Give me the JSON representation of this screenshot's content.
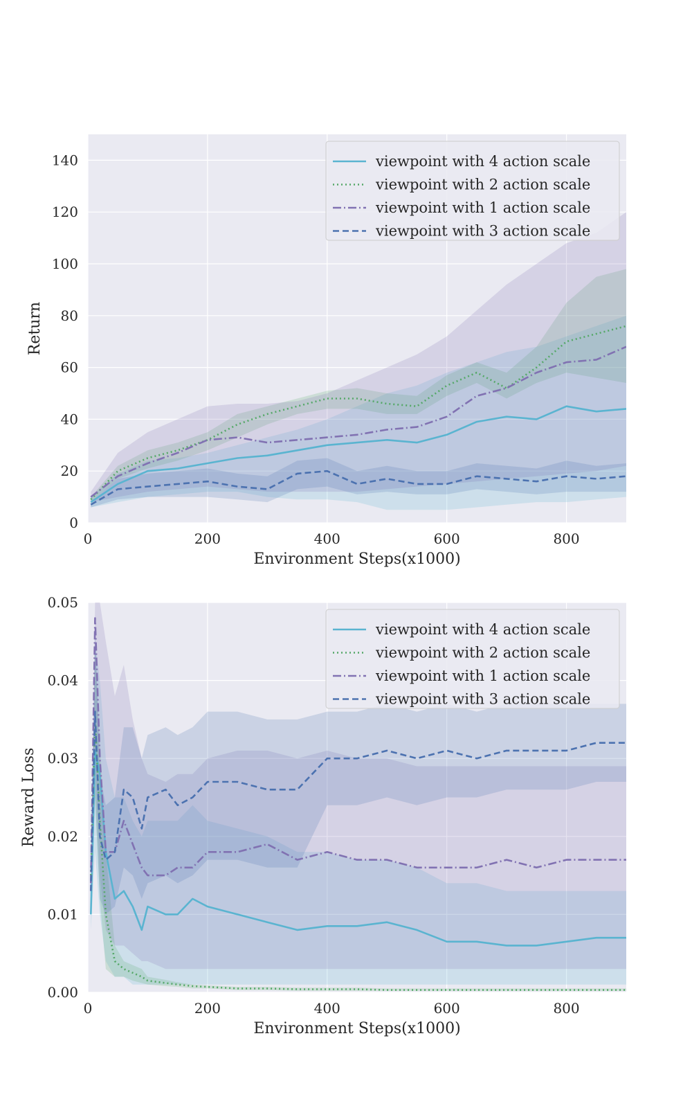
{
  "chart_data": [
    {
      "type": "line",
      "xlabel": "Environment Steps(x1000)",
      "ylabel": "Return",
      "xlim": [
        0,
        900
      ],
      "ylim": [
        0,
        150
      ],
      "xticks": [
        0,
        200,
        400,
        600,
        800
      ],
      "yticks": [
        0,
        20,
        40,
        60,
        80,
        100,
        120,
        140
      ],
      "grid": true,
      "legend_position": "upper-right",
      "series": [
        {
          "name": "viewpoint with 4 action scale",
          "color": "#5ab4d0",
          "style": "solid",
          "x": [
            5,
            50,
            100,
            150,
            200,
            250,
            300,
            350,
            400,
            450,
            500,
            550,
            600,
            650,
            700,
            750,
            800,
            850,
            900
          ],
          "y": [
            8,
            15,
            20,
            21,
            23,
            25,
            26,
            28,
            30,
            31,
            32,
            31,
            34,
            39,
            41,
            40,
            45,
            43,
            44
          ],
          "band_low": [
            6,
            8,
            10,
            11,
            12,
            12,
            10,
            9,
            9,
            8,
            5,
            5,
            5,
            6,
            7,
            8,
            8,
            9,
            10
          ],
          "band_high": [
            10,
            19,
            24,
            25,
            27,
            30,
            33,
            36,
            40,
            45,
            50,
            53,
            58,
            62,
            66,
            68,
            72,
            76,
            80
          ]
        },
        {
          "name": "viewpoint with 2 action scale",
          "color": "#55a868",
          "style": "dotted",
          "x": [
            5,
            50,
            100,
            150,
            200,
            250,
            300,
            350,
            400,
            450,
            500,
            550,
            600,
            650,
            700,
            750,
            800,
            850,
            900
          ],
          "y": [
            9,
            20,
            25,
            28,
            32,
            38,
            42,
            45,
            48,
            48,
            46,
            45,
            53,
            58,
            52,
            60,
            70,
            73,
            76
          ],
          "band_low": [
            8,
            17,
            21,
            24,
            28,
            33,
            38,
            42,
            44,
            44,
            42,
            42,
            49,
            54,
            48,
            54,
            58,
            56,
            54
          ],
          "band_high": [
            10,
            22,
            28,
            31,
            35,
            42,
            45,
            48,
            51,
            52,
            50,
            49,
            57,
            62,
            58,
            68,
            85,
            95,
            98
          ]
        },
        {
          "name": "viewpoint with 1 action scale",
          "color": "#8172b2",
          "style": "dashdot",
          "x": [
            5,
            50,
            100,
            150,
            200,
            250,
            300,
            350,
            400,
            450,
            500,
            550,
            600,
            650,
            700,
            750,
            800,
            850,
            900
          ],
          "y": [
            10,
            18,
            23,
            27,
            32,
            33,
            31,
            32,
            33,
            34,
            36,
            37,
            41,
            49,
            52,
            58,
            62,
            63,
            68
          ],
          "band_low": [
            8,
            10,
            12,
            13,
            14,
            13,
            12,
            12,
            12,
            12,
            13,
            14,
            15,
            16,
            17,
            18,
            19,
            20,
            22
          ],
          "band_high": [
            12,
            27,
            35,
            40,
            45,
            46,
            46,
            47,
            50,
            55,
            60,
            65,
            72,
            82,
            92,
            100,
            108,
            112,
            120
          ]
        },
        {
          "name": "viewpoint with 3 action scale",
          "color": "#4c72b0",
          "style": "dashed",
          "x": [
            5,
            50,
            100,
            150,
            200,
            250,
            300,
            350,
            400,
            450,
            500,
            550,
            600,
            650,
            700,
            750,
            800,
            850,
            900
          ],
          "y": [
            7,
            13,
            14,
            15,
            16,
            14,
            13,
            19,
            20,
            15,
            17,
            15,
            15,
            18,
            17,
            16,
            18,
            17,
            18
          ],
          "band_low": [
            6,
            9,
            10,
            10,
            10,
            9,
            8,
            13,
            14,
            11,
            12,
            11,
            11,
            13,
            12,
            11,
            12,
            12,
            12
          ],
          "band_high": [
            8,
            17,
            19,
            20,
            21,
            19,
            18,
            24,
            25,
            20,
            22,
            20,
            20,
            23,
            22,
            21,
            24,
            22,
            23
          ]
        }
      ]
    },
    {
      "type": "line",
      "xlabel": "Environment Steps(x1000)",
      "ylabel": "Reward Loss",
      "xlim": [
        0,
        900
      ],
      "ylim": [
        0,
        0.05
      ],
      "xticks": [
        0,
        200,
        400,
        600,
        800
      ],
      "yticks": [
        0.0,
        0.01,
        0.02,
        0.03,
        0.04,
        0.05
      ],
      "ytick_labels": [
        "0.00",
        "0.01",
        "0.02",
        "0.03",
        "0.04",
        "0.05"
      ],
      "grid": true,
      "legend_position": "upper-right",
      "series": [
        {
          "name": "viewpoint with 4 action scale",
          "color": "#5ab4d0",
          "style": "solid",
          "x": [
            5,
            12,
            20,
            30,
            45,
            60,
            75,
            90,
            100,
            130,
            150,
            175,
            200,
            250,
            300,
            350,
            400,
            450,
            500,
            550,
            600,
            650,
            700,
            750,
            800,
            850,
            900
          ],
          "y": [
            0.01,
            0.031,
            0.028,
            0.018,
            0.012,
            0.013,
            0.011,
            0.008,
            0.011,
            0.01,
            0.01,
            0.012,
            0.011,
            0.01,
            0.009,
            0.008,
            0.0085,
            0.0085,
            0.009,
            0.008,
            0.0065,
            0.0065,
            0.006,
            0.006,
            0.0065,
            0.007,
            0.007
          ],
          "band_low": [
            0.008,
            0.018,
            0.01,
            0.004,
            0.002,
            0.002,
            0.001,
            0.001,
            0.001,
            0.001,
            0.001,
            0.001,
            0.001,
            0.001,
            0.001,
            0.001,
            0.001,
            0.001,
            0.001,
            0.001,
            0.001,
            0.001,
            0.001,
            0.001,
            0.001,
            0.001,
            0.001
          ],
          "band_high": [
            0.012,
            0.045,
            0.04,
            0.03,
            0.025,
            0.025,
            0.022,
            0.02,
            0.022,
            0.022,
            0.022,
            0.024,
            0.022,
            0.021,
            0.02,
            0.018,
            0.018,
            0.017,
            0.017,
            0.016,
            0.014,
            0.014,
            0.013,
            0.013,
            0.013,
            0.013,
            0.013
          ]
        },
        {
          "name": "viewpoint with 2 action scale",
          "color": "#55a868",
          "style": "dotted",
          "x": [
            5,
            12,
            20,
            30,
            45,
            60,
            75,
            90,
            100,
            130,
            150,
            175,
            200,
            250,
            300,
            350,
            400,
            450,
            500,
            550,
            600,
            650,
            700,
            750,
            800,
            850,
            900
          ],
          "y": [
            0.015,
            0.035,
            0.022,
            0.01,
            0.004,
            0.003,
            0.0025,
            0.002,
            0.0015,
            0.0012,
            0.001,
            0.0008,
            0.0007,
            0.0005,
            0.0005,
            0.0004,
            0.0004,
            0.0004,
            0.0003,
            0.0003,
            0.0003,
            0.0003,
            0.0003,
            0.0003,
            0.0003,
            0.0003,
            0.0003
          ],
          "band_low": [
            0.013,
            0.025,
            0.012,
            0.003,
            0.002,
            0.002,
            0.0015,
            0.0012,
            0.001,
            0.0008,
            0.0007,
            0.0005,
            0.0005,
            0.0003,
            0.0003,
            0.0002,
            0.0002,
            0.0002,
            0.0002,
            0.0002,
            0.0002,
            0.0002,
            0.0002,
            0.0002,
            0.0002,
            0.0002,
            0.0002
          ],
          "band_high": [
            0.017,
            0.045,
            0.032,
            0.018,
            0.006,
            0.004,
            0.0035,
            0.003,
            0.002,
            0.0016,
            0.0013,
            0.001,
            0.0009,
            0.0007,
            0.0007,
            0.0006,
            0.0006,
            0.0006,
            0.0005,
            0.0005,
            0.0005,
            0.0005,
            0.0005,
            0.0005,
            0.0005,
            0.0005,
            0.0005
          ]
        },
        {
          "name": "viewpoint with 1 action scale",
          "color": "#8172b2",
          "style": "dashdot",
          "x": [
            5,
            12,
            20,
            30,
            45,
            60,
            75,
            90,
            100,
            130,
            150,
            175,
            200,
            250,
            300,
            350,
            400,
            450,
            500,
            550,
            600,
            650,
            700,
            750,
            800,
            850,
            900
          ],
          "y": [
            0.014,
            0.048,
            0.03,
            0.018,
            0.018,
            0.022,
            0.019,
            0.016,
            0.015,
            0.015,
            0.016,
            0.016,
            0.018,
            0.018,
            0.019,
            0.017,
            0.018,
            0.017,
            0.017,
            0.016,
            0.016,
            0.016,
            0.017,
            0.016,
            0.017,
            0.017,
            0.017
          ],
          "band_low": [
            0.012,
            0.03,
            0.015,
            0.008,
            0.006,
            0.006,
            0.005,
            0.004,
            0.004,
            0.003,
            0.003,
            0.003,
            0.003,
            0.003,
            0.003,
            0.003,
            0.003,
            0.003,
            0.003,
            0.003,
            0.003,
            0.003,
            0.003,
            0.003,
            0.003,
            0.003,
            0.003
          ],
          "band_high": [
            0.016,
            0.05,
            0.05,
            0.045,
            0.038,
            0.042,
            0.035,
            0.03,
            0.028,
            0.027,
            0.028,
            0.028,
            0.03,
            0.031,
            0.031,
            0.03,
            0.031,
            0.03,
            0.03,
            0.029,
            0.029,
            0.029,
            0.029,
            0.029,
            0.029,
            0.029,
            0.029
          ]
        },
        {
          "name": "viewpoint with 3 action scale",
          "color": "#4c72b0",
          "style": "dashed",
          "x": [
            5,
            12,
            20,
            30,
            45,
            60,
            75,
            90,
            100,
            130,
            150,
            175,
            200,
            250,
            300,
            350,
            400,
            450,
            500,
            550,
            600,
            650,
            700,
            750,
            800,
            850,
            900
          ],
          "y": [
            0.013,
            0.036,
            0.02,
            0.017,
            0.018,
            0.026,
            0.025,
            0.021,
            0.025,
            0.026,
            0.024,
            0.025,
            0.027,
            0.027,
            0.026,
            0.026,
            0.03,
            0.03,
            0.031,
            0.03,
            0.031,
            0.03,
            0.031,
            0.031,
            0.031,
            0.032,
            0.032
          ],
          "band_low": [
            0.011,
            0.025,
            0.012,
            0.01,
            0.011,
            0.016,
            0.015,
            0.012,
            0.014,
            0.015,
            0.014,
            0.015,
            0.017,
            0.017,
            0.016,
            0.016,
            0.024,
            0.024,
            0.025,
            0.024,
            0.025,
            0.025,
            0.026,
            0.026,
            0.026,
            0.027,
            0.027
          ],
          "band_high": [
            0.015,
            0.047,
            0.028,
            0.024,
            0.025,
            0.034,
            0.034,
            0.03,
            0.033,
            0.034,
            0.033,
            0.034,
            0.036,
            0.036,
            0.035,
            0.035,
            0.036,
            0.036,
            0.037,
            0.036,
            0.037,
            0.036,
            0.037,
            0.037,
            0.037,
            0.037,
            0.037
          ]
        }
      ]
    }
  ]
}
